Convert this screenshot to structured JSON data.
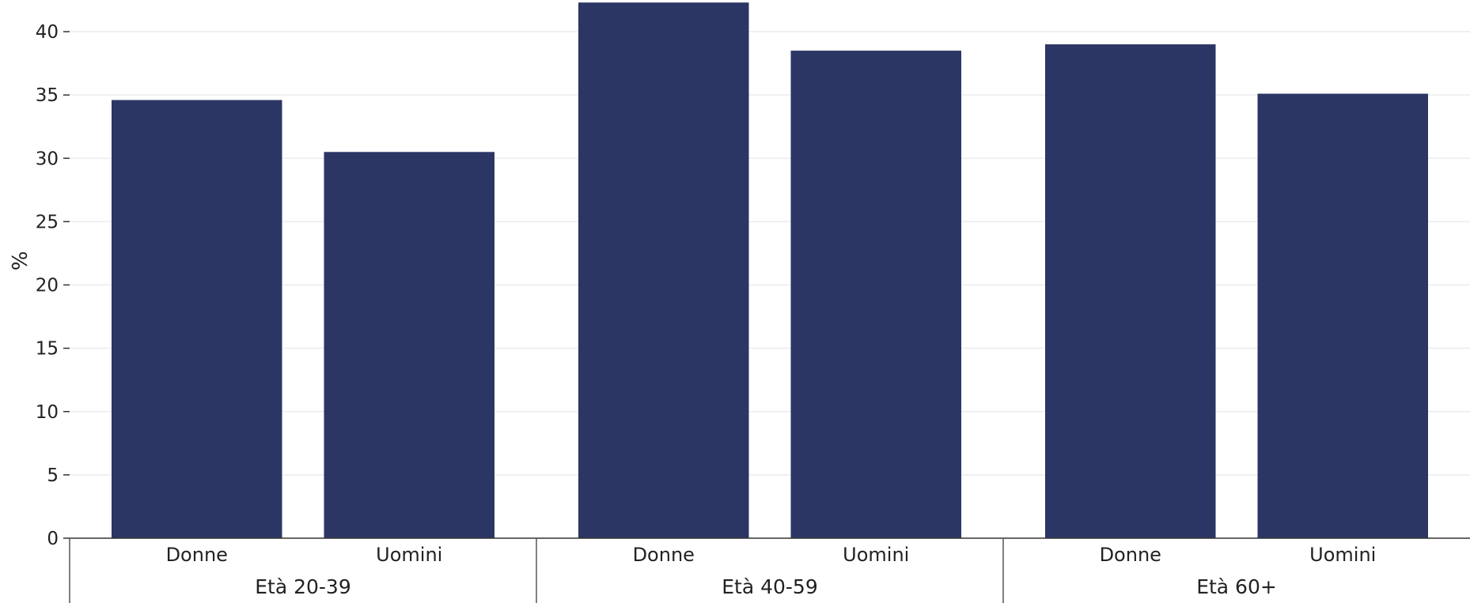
{
  "chart_data": {
    "type": "bar",
    "ylabel": "%",
    "ylim": [
      0,
      42.5
    ],
    "yticks": [
      0,
      5,
      10,
      15,
      20,
      25,
      30,
      35,
      40
    ],
    "grid": true,
    "bar_color": "#2b3664",
    "groups": [
      {
        "label": "Età 20-39",
        "categories": [
          "Donne",
          "Uomini"
        ],
        "values": [
          34.6,
          30.5
        ]
      },
      {
        "label": "Età 40-59",
        "categories": [
          "Donne",
          "Uomini"
        ],
        "values": [
          42.3,
          38.5
        ]
      },
      {
        "label": "Età 60+",
        "categories": [
          "Donne",
          "Uomini"
        ],
        "values": [
          39.0,
          35.1
        ]
      }
    ]
  }
}
